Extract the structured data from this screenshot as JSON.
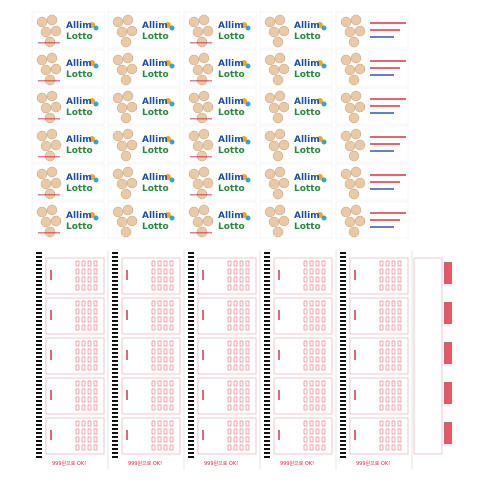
{
  "logo": {
    "line1": "Allim",
    "line2": "Lotto"
  },
  "slip": {
    "footer": "999원으로 OK!"
  }
}
